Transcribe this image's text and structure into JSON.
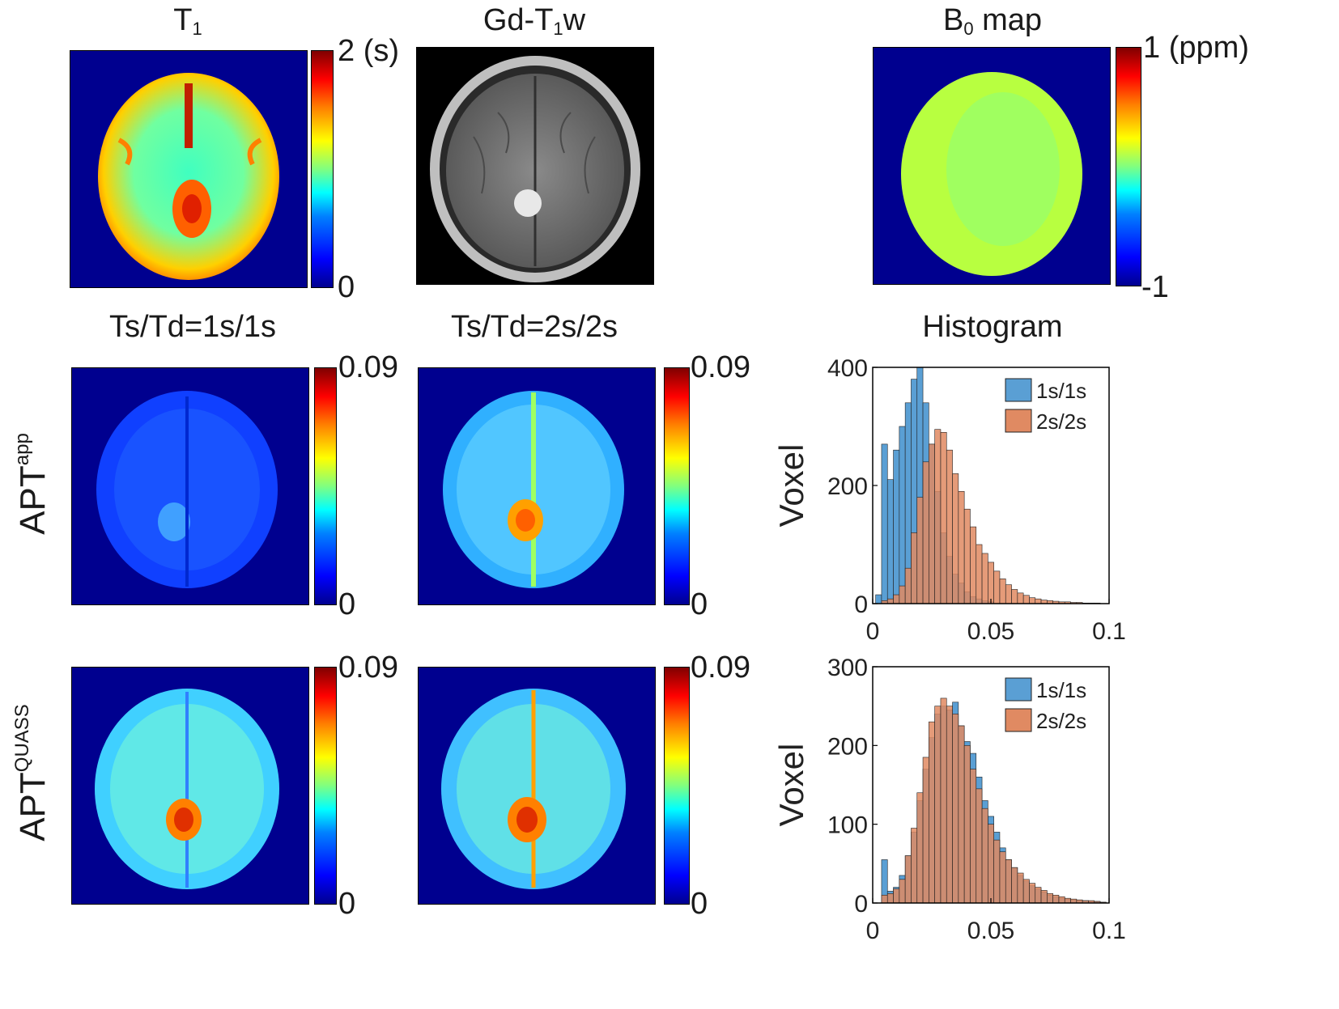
{
  "titles": {
    "t1_base": "T",
    "t1_sub": "1",
    "gd_pre": "Gd-T",
    "gd_sub": "1",
    "gd_post": "w",
    "b0_base": "B",
    "b0_sub": "0",
    "b0_post": " map",
    "ts1": "Ts/Td=1s/1s",
    "ts2": "Ts/Td=2s/2s",
    "histogram": "Histogram"
  },
  "row_labels": {
    "app_base": "APT",
    "app_sup": "app",
    "quass_base": "APT",
    "quass_sup": "QUASS"
  },
  "colorbars": {
    "t1": {
      "max": "2 (s)",
      "min": "0"
    },
    "b0": {
      "max": "1 (ppm)",
      "min": "-1"
    },
    "apt": {
      "max": "0.09",
      "min": "0"
    }
  },
  "colors": {
    "blue_bar": "#5a9fd4",
    "orange_bar": "#e08a62",
    "background_map": "#00008f"
  },
  "chart_data": [
    {
      "type": "bar",
      "title": "Histogram APTapp",
      "ylabel": "Voxel",
      "xlabel": "",
      "xlim": [
        0,
        0.1
      ],
      "ylim": [
        0,
        400
      ],
      "xticks": [
        "0",
        "0.05",
        "0.1"
      ],
      "yticks": [
        "0",
        "200",
        "400"
      ],
      "legend": [
        "1s/1s",
        "2s/2s"
      ],
      "legend_position": "top-right",
      "bin_width": 0.0025,
      "series": [
        {
          "name": "1s/1s",
          "x": [
            0.0025,
            0.005,
            0.0075,
            0.01,
            0.0125,
            0.015,
            0.0175,
            0.02,
            0.0225,
            0.025,
            0.0275,
            0.03,
            0.0325,
            0.035,
            0.0375,
            0.04,
            0.0425,
            0.045,
            0.0475,
            0.05
          ],
          "values": [
            15,
            270,
            210,
            260,
            300,
            340,
            380,
            400,
            340,
            270,
            190,
            120,
            80,
            50,
            35,
            20,
            12,
            8,
            5,
            3
          ]
        },
        {
          "name": "2s/2s",
          "x": [
            0.005,
            0.0075,
            0.01,
            0.0125,
            0.015,
            0.0175,
            0.02,
            0.0225,
            0.025,
            0.0275,
            0.03,
            0.0325,
            0.035,
            0.0375,
            0.04,
            0.0425,
            0.045,
            0.0475,
            0.05,
            0.0525,
            0.055,
            0.0575,
            0.06,
            0.0625,
            0.065,
            0.0675,
            0.07,
            0.0725,
            0.075,
            0.0775,
            0.08,
            0.0825,
            0.085,
            0.0875,
            0.09,
            0.0925,
            0.095
          ],
          "values": [
            5,
            8,
            15,
            30,
            60,
            120,
            180,
            240,
            270,
            295,
            290,
            260,
            220,
            190,
            160,
            130,
            100,
            85,
            70,
            55,
            42,
            32,
            24,
            18,
            14,
            10,
            8,
            6,
            5,
            4,
            3,
            3,
            2,
            2,
            1,
            1,
            1
          ]
        }
      ]
    },
    {
      "type": "bar",
      "title": "Histogram APTQUASS",
      "ylabel": "Voxel",
      "xlabel": "",
      "xlim": [
        0,
        0.1
      ],
      "ylim": [
        0,
        300
      ],
      "xticks": [
        "0",
        "0.05",
        "0.1"
      ],
      "yticks": [
        "0",
        "100",
        "200",
        "300"
      ],
      "legend": [
        "1s/1s",
        "2s/2s"
      ],
      "legend_position": "top-right",
      "bin_width": 0.0025,
      "series": [
        {
          "name": "1s/1s",
          "x": [
            0.005,
            0.0075,
            0.01,
            0.0125,
            0.015,
            0.0175,
            0.02,
            0.0225,
            0.025,
            0.0275,
            0.03,
            0.0325,
            0.035,
            0.0375,
            0.04,
            0.0425,
            0.045,
            0.0475,
            0.05,
            0.0525,
            0.055,
            0.0575,
            0.06,
            0.0625,
            0.065,
            0.0675,
            0.07,
            0.0725,
            0.075,
            0.0775,
            0.08,
            0.0825,
            0.085,
            0.0875,
            0.09,
            0.0925,
            0.095,
            0.0975
          ],
          "values": [
            55,
            15,
            20,
            35,
            60,
            90,
            130,
            170,
            210,
            240,
            250,
            245,
            255,
            225,
            205,
            190,
            160,
            130,
            110,
            90,
            70,
            55,
            45,
            35,
            28,
            22,
            18,
            14,
            10,
            8,
            6,
            5,
            4,
            3,
            3,
            2,
            2,
            1
          ]
        },
        {
          "name": "2s/2s",
          "x": [
            0.005,
            0.0075,
            0.01,
            0.0125,
            0.015,
            0.0175,
            0.02,
            0.0225,
            0.025,
            0.0275,
            0.03,
            0.0325,
            0.035,
            0.0375,
            0.04,
            0.0425,
            0.045,
            0.0475,
            0.05,
            0.0525,
            0.055,
            0.0575,
            0.06,
            0.0625,
            0.065,
            0.0675,
            0.07,
            0.0725,
            0.075,
            0.0775,
            0.08,
            0.0825,
            0.085,
            0.0875,
            0.09,
            0.0925,
            0.095,
            0.0975
          ],
          "values": [
            10,
            12,
            18,
            30,
            60,
            95,
            140,
            185,
            230,
            250,
            260,
            250,
            240,
            225,
            200,
            170,
            145,
            120,
            100,
            80,
            65,
            55,
            45,
            38,
            30,
            25,
            20,
            16,
            12,
            10,
            8,
            6,
            5,
            4,
            3,
            3,
            2,
            1
          ]
        }
      ]
    }
  ]
}
